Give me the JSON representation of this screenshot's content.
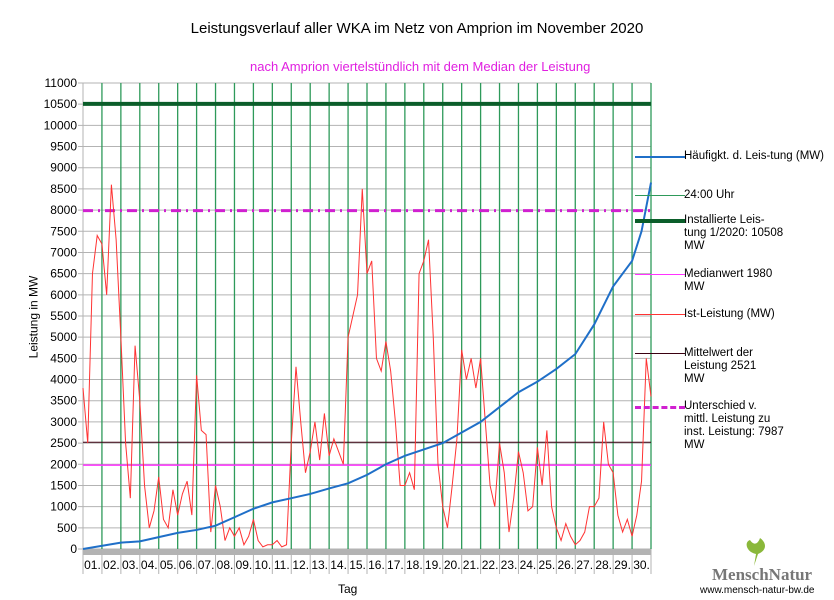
{
  "chart_data": {
    "type": "line",
    "title": "Leistungsverlauf aller WKA im Netz von Amprion im November 2020",
    "subtitle": "nach Amprion viertelstündlich mit dem Median der Leistung",
    "xlabel": "Tag",
    "ylabel": "Leistung in MW",
    "ylim": [
      0,
      11000
    ],
    "yticks": [
      "0",
      "500",
      "1000",
      "1500",
      "2000",
      "2500",
      "3000",
      "3500",
      "4000",
      "4500",
      "5000",
      "5500",
      "6000",
      "6500",
      "7000",
      "7500",
      "8000",
      "8500",
      "9000",
      "9500",
      "10000",
      "10500",
      "11000"
    ],
    "xticks": [
      "01.",
      "02.",
      "03.",
      "04.",
      "05.",
      "06.",
      "07.",
      "08.",
      "09.",
      "10.",
      "11.",
      "12.",
      "13.",
      "14.",
      "15.",
      "16.",
      "17.",
      "18.",
      "19.",
      "20.",
      "21.",
      "22.",
      "23.",
      "24.",
      "25.",
      "26.",
      "27.",
      "28.",
      "29.",
      "30."
    ],
    "colors": {
      "freq": "#1f6fc8",
      "day": "#2e9a5a",
      "installed": "#0b5e2a",
      "median": "#ff33ff",
      "actual": "#ff3333",
      "mean": "#3a0010",
      "diff": "#d020d0"
    },
    "series": [
      {
        "name": "Häufigkt. d. Leistung (MW)",
        "x": [
          0,
          2,
          3,
          4,
          5,
          6,
          7,
          8,
          9,
          10,
          11,
          12,
          13,
          14,
          15,
          16,
          17,
          18,
          19,
          20,
          21,
          22,
          23,
          24,
          25,
          26,
          27,
          28,
          29,
          29.5,
          30
        ],
        "values": [
          0,
          150,
          180,
          280,
          380,
          450,
          550,
          750,
          950,
          1100,
          1200,
          1300,
          1430,
          1550,
          1750,
          2000,
          2200,
          2350,
          2500,
          2750,
          3000,
          3350,
          3700,
          3950,
          4250,
          4600,
          5300,
          6200,
          6800,
          7500,
          8650
        ]
      },
      {
        "name": "Ist-Leistung (MW)",
        "values": [
          3800,
          2500,
          6500,
          7400,
          7200,
          6000,
          8600,
          7300,
          5000,
          2500,
          1200,
          4800,
          3500,
          1500,
          500,
          900,
          1700,
          700,
          500,
          1400,
          800,
          1300,
          1600,
          800,
          4100,
          2800,
          2700,
          400,
          1500,
          1000,
          200,
          500,
          300,
          500,
          100,
          300,
          700,
          200,
          50,
          100,
          100,
          200,
          50,
          100,
          2500,
          4300,
          3000,
          1800,
          2300,
          3000,
          2100,
          3200,
          2200,
          2600,
          2300,
          2000,
          5000,
          5500,
          6000,
          8500,
          6500,
          6800,
          4500,
          4200,
          4900,
          4200,
          3000,
          1500,
          1500,
          1800,
          1400,
          6500,
          6800,
          7300,
          5000,
          2000,
          1000,
          500,
          1500,
          2600,
          4700,
          4000,
          4500,
          3800,
          4500,
          3000,
          1500,
          1000,
          2500,
          1800,
          400,
          1200,
          2300,
          1800,
          900,
          1000,
          2400,
          1500,
          2800,
          1000,
          500,
          200,
          600,
          300,
          100,
          200,
          400,
          1000,
          1000,
          1200,
          3000,
          2000,
          1800,
          800,
          400,
          700,
          300,
          800,
          1600,
          4500,
          3600
        ]
      },
      {
        "name": "Installierte Leistung 1/2020: 10508 MW",
        "value": 10508
      },
      {
        "name": "Medianwert 1980 MW",
        "value": 1980
      },
      {
        "name": "Mittelwert der Leistung 2521 MW",
        "value": 2521
      },
      {
        "name": "Unterschied v. mittl. Leistung zu inst. Leistung: 7987 MW",
        "value": 7987
      }
    ],
    "legend": [
      "Häufigkt. d. Leis-tung (MW)",
      "24:00 Uhr",
      "Installierte Leis-tung 1/2020: 10508 MW",
      "Medianwert 1980 MW",
      "Ist-Leistung (MW)",
      "Mittelwert der Leistung 2521 MW",
      "Unterschied v. mittl. Leistung zu inst. Leistung: 7987 MW"
    ]
  },
  "logo": {
    "name": "MenschNatur",
    "url": "www.mensch-natur-bw.de"
  }
}
